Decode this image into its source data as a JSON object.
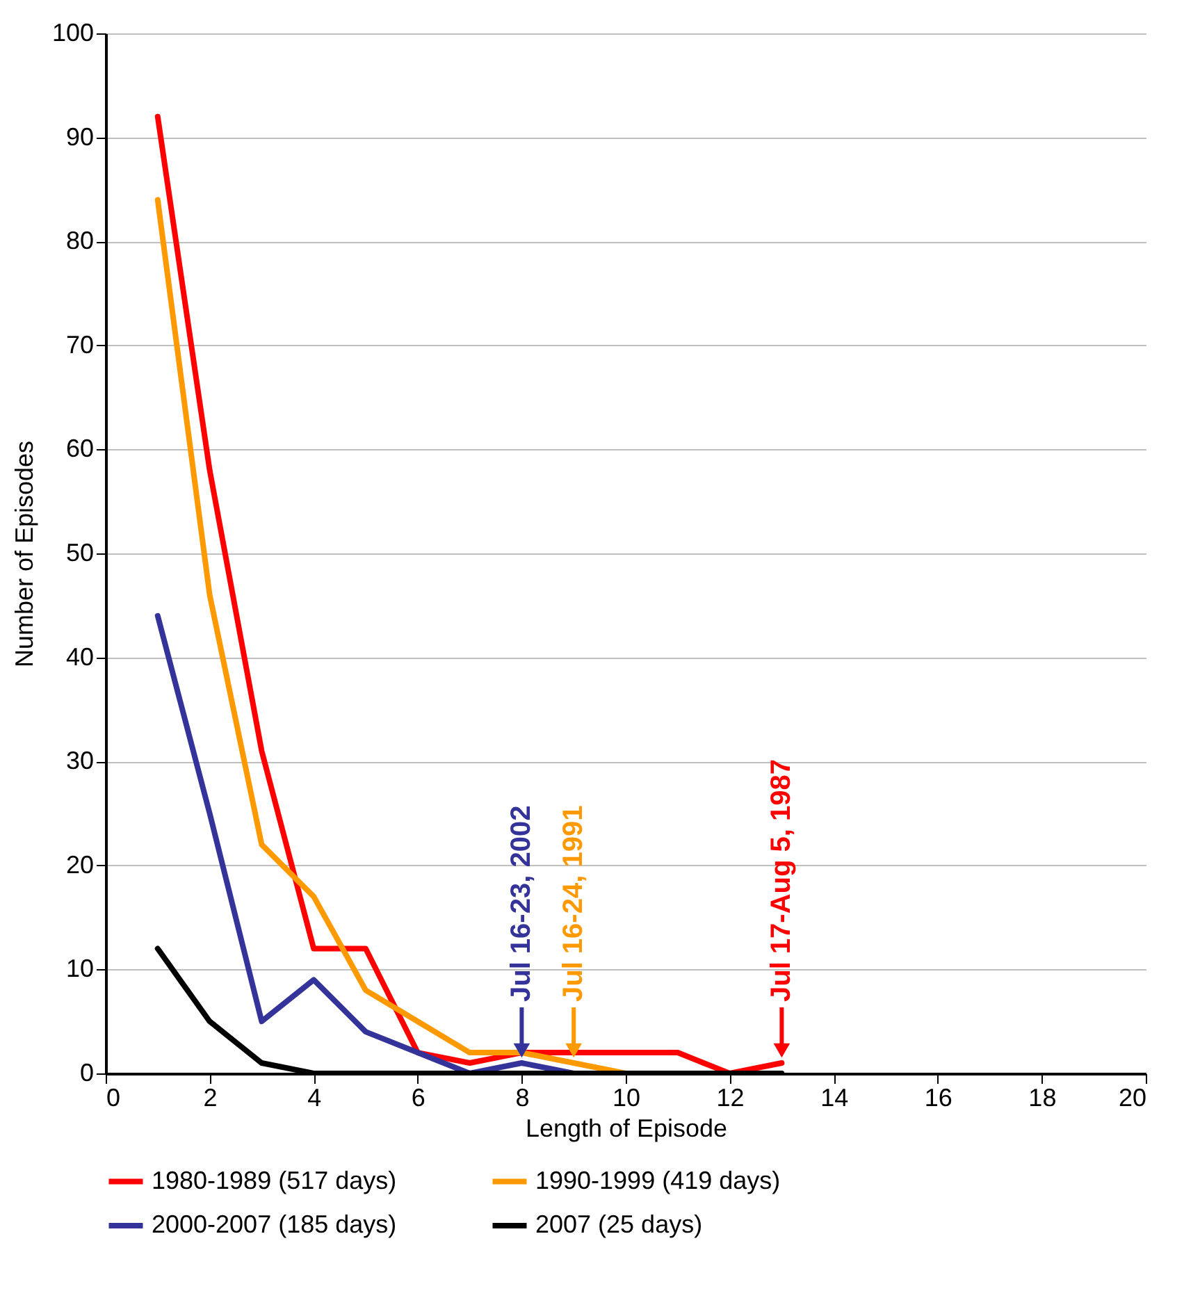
{
  "chart_data": {
    "type": "line",
    "xlabel": "Length of Episode",
    "ylabel": "Number of Episodes",
    "x": [
      1,
      2,
      3,
      4,
      5,
      6,
      7,
      8,
      9,
      10,
      11,
      12,
      13
    ],
    "series": [
      {
        "name": "1980-1989 (517 days)",
        "color": "#ff0000",
        "values": [
          92,
          58,
          31,
          12,
          12,
          2,
          1,
          2,
          2,
          2,
          2,
          0,
          1
        ]
      },
      {
        "name": "1990-1999 (419 days)",
        "color": "#ff9900",
        "values": [
          84,
          46,
          22,
          17,
          8,
          5,
          2,
          2,
          1,
          0,
          null,
          null,
          null
        ]
      },
      {
        "name": "2000-2007 (185 days)",
        "color": "#333399",
        "values": [
          44,
          25,
          5,
          9,
          4,
          2,
          0,
          1,
          0,
          null,
          null,
          null,
          null
        ]
      },
      {
        "name": "2007 (25 days)",
        "color": "#000000",
        "values": [
          12,
          5,
          1,
          0,
          0,
          0,
          0,
          0,
          0,
          0,
          0,
          0,
          0
        ]
      }
    ],
    "annotations": [
      {
        "text": "Jul 16-23, 2002",
        "x": 8,
        "y": 1
      },
      {
        "text": "Jul 16-24, 1991",
        "x": 9,
        "y": 1
      },
      {
        "text": "Jul 17-Aug 5, 1987",
        "x": 13,
        "y": 1
      }
    ],
    "xlim": [
      0,
      20
    ],
    "xticks": [
      0,
      2,
      4,
      6,
      8,
      10,
      12,
      14,
      16,
      18,
      20
    ],
    "ylim": [
      0,
      100
    ],
    "yticks": [
      0,
      10,
      20,
      30,
      40,
      50,
      60,
      70,
      80,
      90,
      100
    ],
    "grid": "y",
    "legend": "bottom",
    "marker": "none",
    "line_style": "solid"
  }
}
